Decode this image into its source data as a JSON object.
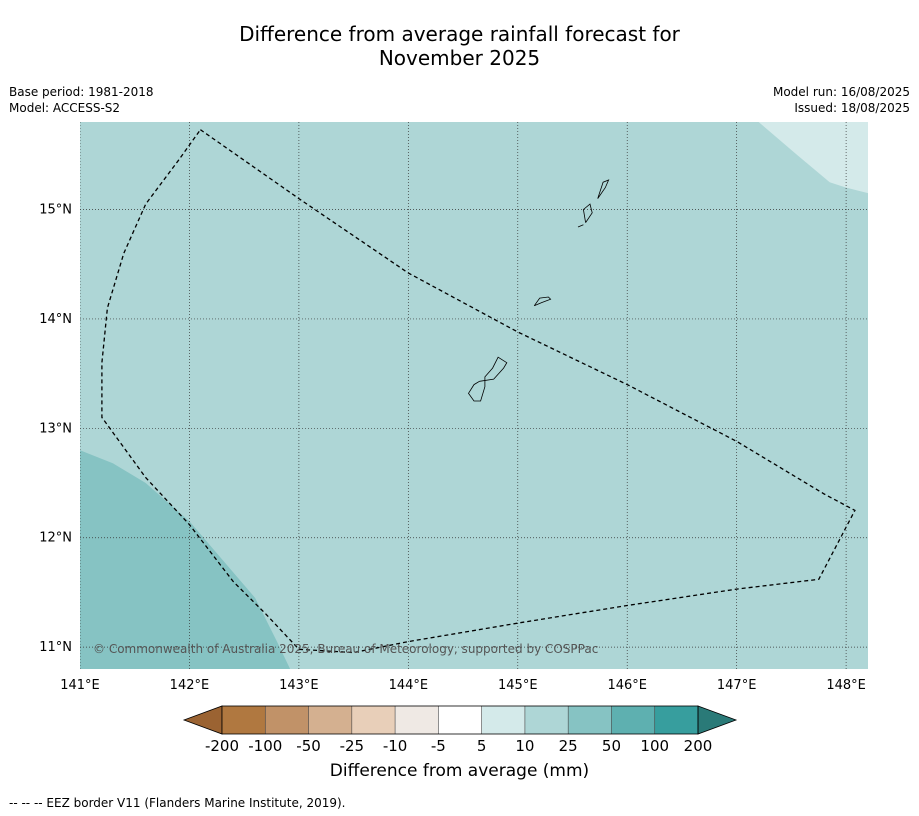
{
  "header": {
    "title_line1": "Difference from average rainfall forecast for",
    "title_line2": "November 2025",
    "base_period": "Base period: 1981-2018",
    "model": "Model: ACCESS-S2",
    "model_run": "Model run: 16/08/2025",
    "issued": "Issued: 18/08/2025"
  },
  "map": {
    "lon_range": [
      141.0,
      148.2
    ],
    "lat_range": [
      10.8,
      15.8
    ],
    "lon_ticks": [
      {
        "value": 141,
        "label": "141°E"
      },
      {
        "value": 142,
        "label": "142°E"
      },
      {
        "value": 143,
        "label": "143°E"
      },
      {
        "value": 144,
        "label": "144°E"
      },
      {
        "value": 145,
        "label": "145°E"
      },
      {
        "value": 146,
        "label": "146°E"
      },
      {
        "value": 147,
        "label": "147°E"
      },
      {
        "value": 148,
        "label": "148°E"
      }
    ],
    "lat_ticks": [
      {
        "value": 11,
        "label": "11°N"
      },
      {
        "value": 12,
        "label": "12°N"
      },
      {
        "value": 13,
        "label": "13°N"
      },
      {
        "value": 14,
        "label": "14°N"
      },
      {
        "value": 15,
        "label": "15°N"
      }
    ],
    "copyright": "© Commonwealth of Australia 2025, Bureau of Meteorology, supported by COSPPac",
    "regions": [
      {
        "category": "10 to 25",
        "color": "#aed6d6",
        "polygon": [
          [
            141.0,
            10.8
          ],
          [
            148.2,
            10.8
          ],
          [
            148.2,
            15.8
          ],
          [
            141.0,
            15.8
          ]
        ]
      },
      {
        "category": "25 to 50",
        "color": "#86c3c3",
        "polygon": [
          [
            141.0,
            12.8
          ],
          [
            141.3,
            12.68
          ],
          [
            141.6,
            12.5
          ],
          [
            142.0,
            12.15
          ],
          [
            142.3,
            11.8
          ],
          [
            142.6,
            11.45
          ],
          [
            142.8,
            11.05
          ],
          [
            142.92,
            10.8
          ],
          [
            141.0,
            10.8
          ]
        ]
      },
      {
        "category": "5 to 10",
        "color": "#d4eaea",
        "polygon": [
          [
            147.2,
            15.8
          ],
          [
            147.55,
            15.5
          ],
          [
            147.85,
            15.25
          ],
          [
            148.0,
            15.2
          ],
          [
            148.2,
            15.15
          ],
          [
            148.2,
            15.8
          ]
        ]
      }
    ],
    "eez_border": [
      [
        142.1,
        15.73
      ],
      [
        143.0,
        15.1
      ],
      [
        144.0,
        14.42
      ],
      [
        145.0,
        13.88
      ],
      [
        146.0,
        13.4
      ],
      [
        147.0,
        12.88
      ],
      [
        147.8,
        12.4
      ],
      [
        148.08,
        12.25
      ],
      [
        147.75,
        11.62
      ],
      [
        147.0,
        11.53
      ],
      [
        146.0,
        11.38
      ],
      [
        145.0,
        11.22
      ],
      [
        144.0,
        11.05
      ],
      [
        143.5,
        10.95
      ],
      [
        143.0,
        10.98
      ],
      [
        142.7,
        11.3
      ],
      [
        142.4,
        11.6
      ],
      [
        142.0,
        12.12
      ],
      [
        141.6,
        12.55
      ],
      [
        141.2,
        13.1
      ],
      [
        141.2,
        13.6
      ],
      [
        141.25,
        14.1
      ],
      [
        141.4,
        14.6
      ],
      [
        141.6,
        15.05
      ],
      [
        141.9,
        15.45
      ],
      [
        142.1,
        15.73
      ]
    ],
    "islands": [
      {
        "name": "",
        "outline": [
          [
            144.65,
            13.43
          ],
          [
            144.78,
            13.45
          ],
          [
            144.87,
            13.55
          ],
          [
            144.9,
            13.6
          ],
          [
            144.82,
            13.65
          ],
          [
            144.77,
            13.55
          ],
          [
            144.7,
            13.47
          ],
          [
            144.7,
            13.38
          ],
          [
            144.66,
            13.25
          ],
          [
            144.6,
            13.25
          ],
          [
            144.55,
            13.32
          ],
          [
            144.6,
            13.4
          ],
          [
            144.65,
            13.43
          ]
        ]
      },
      {
        "name": "",
        "outline": [
          [
            145.15,
            14.12
          ],
          [
            145.22,
            14.15
          ],
          [
            145.3,
            14.18
          ],
          [
            145.28,
            14.2
          ],
          [
            145.2,
            14.19
          ],
          [
            145.15,
            14.12
          ]
        ]
      },
      {
        "name": "",
        "outline": [
          [
            145.62,
            14.88
          ],
          [
            145.68,
            14.97
          ],
          [
            145.66,
            15.05
          ],
          [
            145.6,
            15.0
          ],
          [
            145.62,
            14.88
          ]
        ]
      },
      {
        "name": "",
        "outline": [
          [
            145.73,
            15.1
          ],
          [
            145.8,
            15.2
          ],
          [
            145.83,
            15.27
          ],
          [
            145.78,
            15.25
          ],
          [
            145.73,
            15.1
          ]
        ]
      },
      {
        "name": "",
        "outline": [
          [
            145.55,
            14.84
          ],
          [
            145.6,
            14.86
          ]
        ]
      }
    ]
  },
  "colorbar": {
    "label": "Difference from average (mm)",
    "tick_labels": [
      "-200",
      "-100",
      "-50",
      "-25",
      "-10",
      "-5",
      "5",
      "10",
      "25",
      "50",
      "100",
      "200"
    ],
    "colors": [
      "#9b6332",
      "#b07840",
      "#c19268",
      "#d4b090",
      "#e8cfb9",
      "#efe9e4",
      "#ffffff",
      "#d4eaea",
      "#aed6d6",
      "#86c3c3",
      "#5eb0b0",
      "#379e9e",
      "#2a7a78"
    ]
  },
  "footnote": "--  --  -- EEZ border V11 (Flanders Marine Institute, 2019)."
}
